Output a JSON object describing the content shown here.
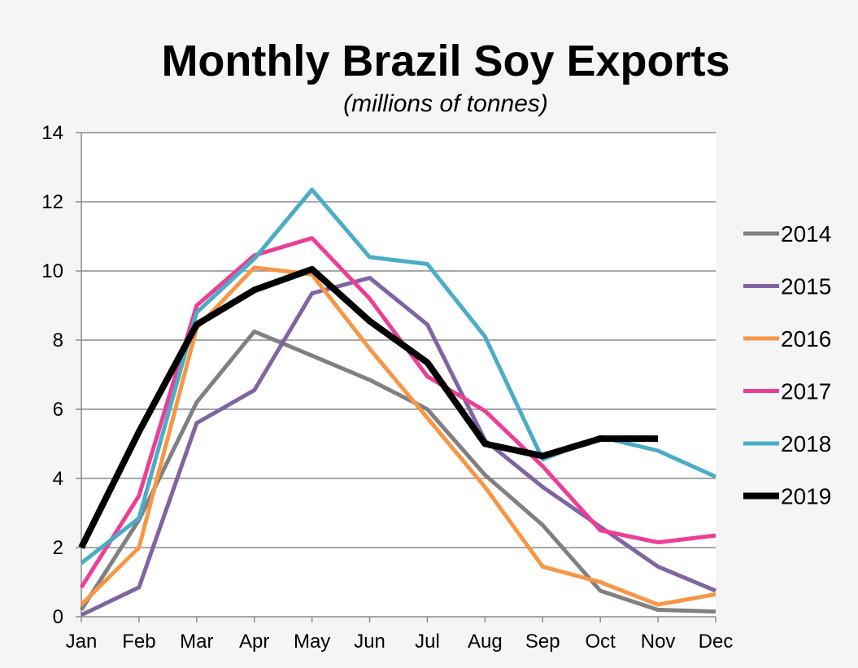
{
  "chart_data": {
    "type": "line",
    "title": "Monthly Brazil Soy Exports",
    "subtitle": "(millions of tonnes)",
    "xlabel": "",
    "ylabel": "",
    "categories": [
      "Jan",
      "Feb",
      "Mar",
      "Apr",
      "May",
      "Jun",
      "Jul",
      "Aug",
      "Sep",
      "Oct",
      "Nov",
      "Dec"
    ],
    "ylim": [
      0,
      14
    ],
    "yticks": [
      0,
      2,
      4,
      6,
      8,
      10,
      12,
      14
    ],
    "grid": true,
    "legend_position": "right",
    "series": [
      {
        "name": "2014",
        "color": "#808080",
        "values": [
          0.2,
          2.8,
          6.2,
          8.25,
          7.55,
          6.85,
          6.0,
          4.1,
          2.65,
          0.75,
          0.2,
          0.15
        ]
      },
      {
        "name": "2015",
        "color": "#8064a2",
        "values": [
          0.05,
          0.85,
          5.6,
          6.55,
          9.35,
          9.8,
          8.45,
          5.1,
          3.75,
          2.6,
          1.45,
          0.75
        ]
      },
      {
        "name": "2016",
        "color": "#f79646",
        "values": [
          0.35,
          2.0,
          8.35,
          10.1,
          9.9,
          7.75,
          5.75,
          3.75,
          1.45,
          1.0,
          0.35,
          0.65
        ]
      },
      {
        "name": "2017",
        "color": "#ec3e96",
        "values": [
          0.85,
          3.5,
          9.0,
          10.45,
          10.95,
          9.2,
          6.95,
          5.95,
          4.35,
          2.5,
          2.15,
          2.35
        ]
      },
      {
        "name": "2018",
        "color": "#4bacc6",
        "values": [
          1.55,
          2.85,
          8.8,
          10.35,
          12.35,
          10.4,
          10.2,
          8.1,
          4.55,
          5.2,
          4.8,
          4.05
        ]
      },
      {
        "name": "2019",
        "color": "#000000",
        "values": [
          2.0,
          5.35,
          8.45,
          9.45,
          10.05,
          8.55,
          7.35,
          5.0,
          4.65,
          5.15,
          5.15,
          null
        ]
      }
    ]
  }
}
